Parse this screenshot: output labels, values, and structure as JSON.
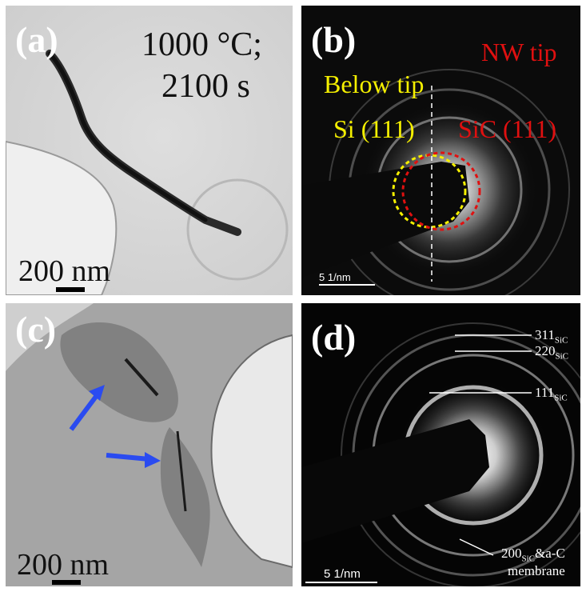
{
  "panels": {
    "a": {
      "label": "(a)",
      "condition_line1": "1000 °C;",
      "condition_line2": "2100 s",
      "scale_label": "200 nm"
    },
    "b": {
      "label": "(b)",
      "nw_tip": "NW tip",
      "below_tip": "Below tip",
      "si_label": "Si (111)",
      "sic_label": "SiC (111)",
      "scale_label": "5 1/nm"
    },
    "c": {
      "label": "(c)",
      "scale_label": "200 nm"
    },
    "d": {
      "label": "(d)",
      "ring_311": "311",
      "ring_220": "220",
      "ring_111": "111",
      "ring_sub": "SiC",
      "ring_200": "200",
      "ring_200_tail": "&a-C",
      "membrane": "membrane",
      "scale_label": "5 1/nm"
    }
  },
  "colors": {
    "yellow_label": "#f5f000",
    "red_label": "#e01010",
    "arrow": "#2a4bf0"
  }
}
